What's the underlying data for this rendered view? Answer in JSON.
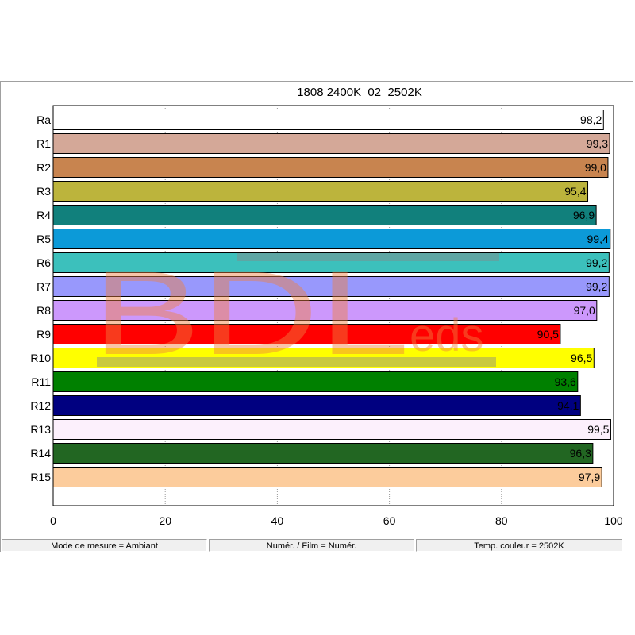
{
  "chart_data": {
    "type": "bar",
    "orientation": "horizontal",
    "title": "1808 2400K_02_2502K",
    "xlabel": "",
    "ylabel": "",
    "xlim": [
      0,
      100
    ],
    "x_ticks": [
      "0",
      "20",
      "40",
      "60",
      "80",
      "100"
    ],
    "grid": "vertical dotted",
    "categories": [
      "Ra",
      "R1",
      "R2",
      "R3",
      "R4",
      "R5",
      "R6",
      "R7",
      "R8",
      "R9",
      "R10",
      "R11",
      "R12",
      "R13",
      "R14",
      "R15"
    ],
    "values": [
      98.2,
      99.3,
      99.0,
      95.4,
      96.9,
      99.4,
      99.2,
      99.2,
      97.0,
      90.5,
      96.5,
      93.6,
      94.1,
      99.5,
      96.3,
      97.9
    ],
    "value_labels": [
      "98,2",
      "99,3",
      "99,0",
      "95,4",
      "96,9",
      "99,4",
      "99,2",
      "99,2",
      "97,0",
      "90,5",
      "96,5",
      "93,6",
      "94,1",
      "99,5",
      "96,3",
      "97,9"
    ],
    "colors": [
      "#ffffff",
      "#d4a898",
      "#c8844f",
      "#bcb43c",
      "#11807c",
      "#0c9ad8",
      "#3cc0bc",
      "#9898fc",
      "#cc98fc",
      "#ff0000",
      "#ffff00",
      "#008000",
      "#000080",
      "#fcf0fc",
      "#226622",
      "#fccc9c"
    ]
  },
  "watermark": {
    "text": "BDLeds"
  },
  "statusbar": {
    "mode": "Mode de mesure = Ambiant",
    "film": "Numér. / Film = Numér.",
    "temp": "Temp. couleur = 2502K"
  }
}
